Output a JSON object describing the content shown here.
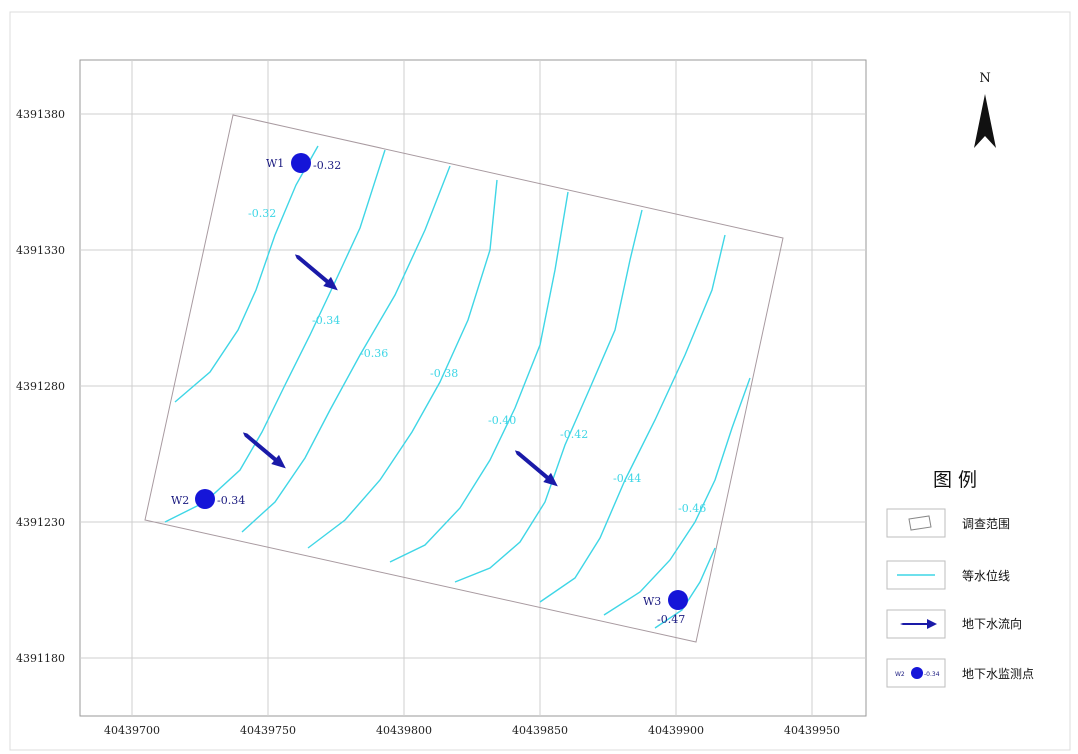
{
  "axes": {
    "x_ticks": [
      "40439700",
      "40439750",
      "40439800",
      "40439850",
      "40439900",
      "40439950"
    ],
    "y_ticks": [
      "4391380",
      "4391330",
      "4391280",
      "4391230",
      "4391180"
    ]
  },
  "north": {
    "label": "N"
  },
  "contours": [
    {
      "label": "-0.32",
      "level": -0.32
    },
    {
      "label": "-0.34",
      "level": -0.34
    },
    {
      "label": "-0.36",
      "level": -0.36
    },
    {
      "label": "-0.38",
      "level": -0.38
    },
    {
      "label": "-0.40",
      "level": -0.4
    },
    {
      "label": "-0.42",
      "level": -0.42
    },
    {
      "label": "-0.44",
      "level": -0.44
    },
    {
      "label": "-0.46",
      "level": -0.46
    }
  ],
  "wells": [
    {
      "id": "W1",
      "value": "-0.32"
    },
    {
      "id": "W2",
      "value": "-0.34"
    },
    {
      "id": "W3",
      "value": "-0.47"
    }
  ],
  "legend": {
    "title": "图 例",
    "items": [
      {
        "key": "survey-area",
        "label": "调查范围"
      },
      {
        "key": "contour-line",
        "label": "等水位线"
      },
      {
        "key": "flow-direction",
        "label": "地下水流向"
      },
      {
        "key": "monitoring-point",
        "label": "地下水监测点",
        "sample_id": "W2",
        "sample_value": "-0.34"
      }
    ]
  },
  "colors": {
    "contour": "#3fd6e6",
    "well": "#1515d8",
    "arrow": "#1a1aa8",
    "grid": "#cfcfcf",
    "boundary": "#a89aa0"
  }
}
